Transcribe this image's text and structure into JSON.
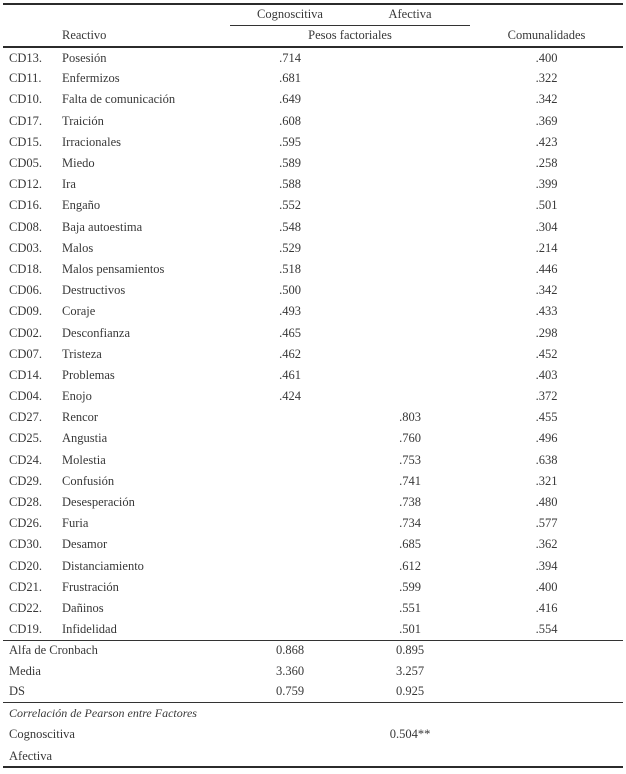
{
  "header": {
    "group_cols": [
      "Cognoscitiva",
      "Afectiva"
    ],
    "reactivo_label": "Reactivo",
    "pesos_label": "Pesos factoriales",
    "comunalidades_label": "Comunalidades"
  },
  "items": [
    {
      "code": "CD13.",
      "name": "Posesión",
      "cognoscitiva": ".714",
      "afectiva": "",
      "comunalidad": ".400"
    },
    {
      "code": "CD11.",
      "name": "Enfermizos",
      "cognoscitiva": ".681",
      "afectiva": "",
      "comunalidad": ".322"
    },
    {
      "code": "CD10.",
      "name": "Falta de comunicación",
      "cognoscitiva": ".649",
      "afectiva": "",
      "comunalidad": ".342"
    },
    {
      "code": "CD17.",
      "name": "Traición",
      "cognoscitiva": ".608",
      "afectiva": "",
      "comunalidad": ".369"
    },
    {
      "code": "CD15.",
      "name": "Irracionales",
      "cognoscitiva": ".595",
      "afectiva": "",
      "comunalidad": ".423"
    },
    {
      "code": "CD05.",
      "name": "Miedo",
      "cognoscitiva": ".589",
      "afectiva": "",
      "comunalidad": ".258"
    },
    {
      "code": "CD12.",
      "name": "Ira",
      "cognoscitiva": ".588",
      "afectiva": "",
      "comunalidad": ".399"
    },
    {
      "code": "CD16.",
      "name": "Engaño",
      "cognoscitiva": ".552",
      "afectiva": "",
      "comunalidad": ".501"
    },
    {
      "code": "CD08.",
      "name": "Baja autoestima",
      "cognoscitiva": ".548",
      "afectiva": "",
      "comunalidad": ".304"
    },
    {
      "code": "CD03.",
      "name": "Malos",
      "cognoscitiva": ".529",
      "afectiva": "",
      "comunalidad": ".214"
    },
    {
      "code": "CD18.",
      "name": "Malos pensamientos",
      "cognoscitiva": ".518",
      "afectiva": "",
      "comunalidad": ".446"
    },
    {
      "code": "CD06.",
      "name": "Destructivos",
      "cognoscitiva": ".500",
      "afectiva": "",
      "comunalidad": ".342"
    },
    {
      "code": "CD09.",
      "name": "Coraje",
      "cognoscitiva": ".493",
      "afectiva": "",
      "comunalidad": ".433"
    },
    {
      "code": "CD02.",
      "name": "Desconfianza",
      "cognoscitiva": ".465",
      "afectiva": "",
      "comunalidad": ".298"
    },
    {
      "code": "CD07.",
      "name": "Tristeza",
      "cognoscitiva": ".462",
      "afectiva": "",
      "comunalidad": ".452"
    },
    {
      "code": "CD14.",
      "name": "Problemas",
      "cognoscitiva": ".461",
      "afectiva": "",
      "comunalidad": ".403"
    },
    {
      "code": "CD04.",
      "name": "Enojo",
      "cognoscitiva": ".424",
      "afectiva": "",
      "comunalidad": ".372"
    },
    {
      "code": "CD27.",
      "name": "Rencor",
      "cognoscitiva": "",
      "afectiva": ".803",
      "comunalidad": ".455"
    },
    {
      "code": "CD25.",
      "name": "Angustia",
      "cognoscitiva": "",
      "afectiva": ".760",
      "comunalidad": ".496"
    },
    {
      "code": "CD24.",
      "name": "Molestia",
      "cognoscitiva": "",
      "afectiva": ".753",
      "comunalidad": ".638"
    },
    {
      "code": "CD29.",
      "name": "Confusión",
      "cognoscitiva": "",
      "afectiva": ".741",
      "comunalidad": ".321"
    },
    {
      "code": "CD28.",
      "name": "Desesperación",
      "cognoscitiva": "",
      "afectiva": ".738",
      "comunalidad": ".480"
    },
    {
      "code": "CD26.",
      "name": "Furia",
      "cognoscitiva": "",
      "afectiva": ".734",
      "comunalidad": ".577"
    },
    {
      "code": "CD30.",
      "name": "Desamor",
      "cognoscitiva": "",
      "afectiva": ".685",
      "comunalidad": ".362"
    },
    {
      "code": "CD20.",
      "name": "Distanciamiento",
      "cognoscitiva": "",
      "afectiva": ".612",
      "comunalidad": ".394"
    },
    {
      "code": "CD21.",
      "name": "Frustración",
      "cognoscitiva": "",
      "afectiva": ".599",
      "comunalidad": ".400"
    },
    {
      "code": "CD22.",
      "name": "Dañinos",
      "cognoscitiva": "",
      "afectiva": ".551",
      "comunalidad": ".416"
    },
    {
      "code": "CD19.",
      "name": "Infidelidad",
      "cognoscitiva": "",
      "afectiva": ".501",
      "comunalidad": ".554"
    }
  ],
  "summary": [
    {
      "label": "Alfa de Cronbach",
      "cognoscitiva": "0.868",
      "afectiva": "0.895"
    },
    {
      "label": "Media",
      "cognoscitiva": "3.360",
      "afectiva": "3.257"
    },
    {
      "label": "DS",
      "cognoscitiva": "0.759",
      "afectiva": "0.925"
    }
  ],
  "pearson": {
    "title": "Correlación de Pearson entre Factores",
    "rows": [
      {
        "label": "Cognoscitiva",
        "afectiva": "0.504**"
      },
      {
        "label": "Afectiva",
        "afectiva": ""
      }
    ]
  }
}
